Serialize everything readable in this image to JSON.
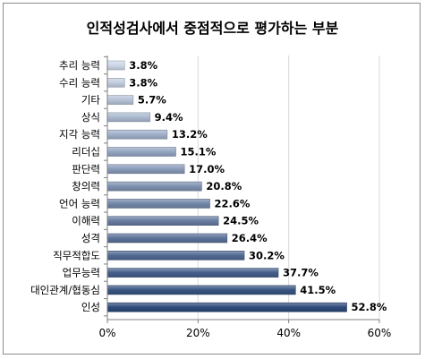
{
  "chart_data": {
    "type": "bar",
    "orientation": "horizontal",
    "title": "인적성검사에서 중점적으로 평가하는 부분",
    "categories": [
      "추리 능력",
      "수리 능력",
      "기타",
      "상식",
      "지각 능력",
      "리더십",
      "판단력",
      "창의력",
      "언어 능력",
      "이해력",
      "성격",
      "직무적합도",
      "업무능력",
      "대인관계/협동심",
      "인성"
    ],
    "values": [
      3.8,
      3.8,
      5.7,
      9.4,
      13.2,
      15.1,
      17.0,
      20.8,
      22.6,
      24.5,
      26.4,
      30.2,
      37.7,
      41.5,
      52.8
    ],
    "value_labels": [
      "3.8%",
      "3.8%",
      "5.7%",
      "9.4%",
      "13.2%",
      "15.1%",
      "17.0%",
      "20.8%",
      "22.6%",
      "24.5%",
      "26.4%",
      "30.2%",
      "37.7%",
      "41.5%",
      "52.8%"
    ],
    "xlim": [
      0,
      60
    ],
    "x_ticks": [
      0,
      20,
      40,
      60
    ],
    "x_tick_labels": [
      "0%",
      "20%",
      "40%",
      "60%"
    ],
    "xlabel": "",
    "ylabel": "",
    "grid": true,
    "legend": "none",
    "colors": {
      "bar_light": "#cdd7e8",
      "bar_dark": "#2e4a7a",
      "bar_border": "#27406b",
      "grid": "#d9d9d9",
      "axis": "#7f7f7f"
    }
  }
}
